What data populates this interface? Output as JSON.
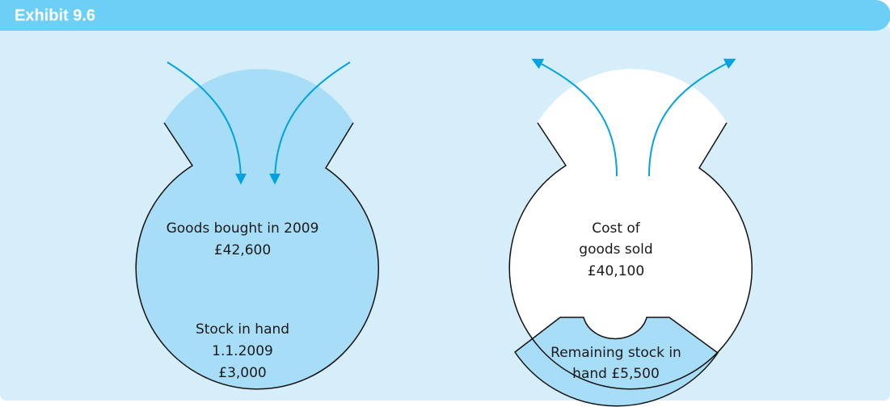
{
  "header": {
    "title": "Exhibit 9.6"
  },
  "left_bag": {
    "upper_lines": [
      "Goods bought in 2009",
      "£42,600"
    ],
    "lower_lines": [
      "Stock in hand",
      "1.1.2009",
      "£3,000"
    ]
  },
  "right_bag": {
    "upper_lines": [
      "Cost of",
      "goods sold",
      "£40,100"
    ],
    "lower_lines": [
      "Remaining stock in",
      "hand £5,500"
    ]
  }
}
